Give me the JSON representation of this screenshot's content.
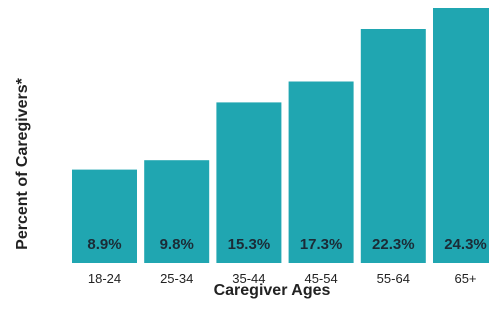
{
  "chart_data": {
    "type": "bar",
    "categories": [
      "18-24",
      "25-34",
      "35-44",
      "45-54",
      "55-64",
      "65+"
    ],
    "values": [
      8.9,
      9.8,
      15.3,
      17.3,
      22.3,
      24.3
    ],
    "value_labels": [
      "8.9%",
      "9.8%",
      "15.3%",
      "17.3%",
      "22.3%",
      "24.3%"
    ],
    "xlabel": "Caregiver Ages",
    "ylabel": "Percent of Caregivers*",
    "ylim": [
      0,
      24.3
    ],
    "grid": false,
    "bar_color": "#20a6b1",
    "label_color": "#1b2b36"
  }
}
